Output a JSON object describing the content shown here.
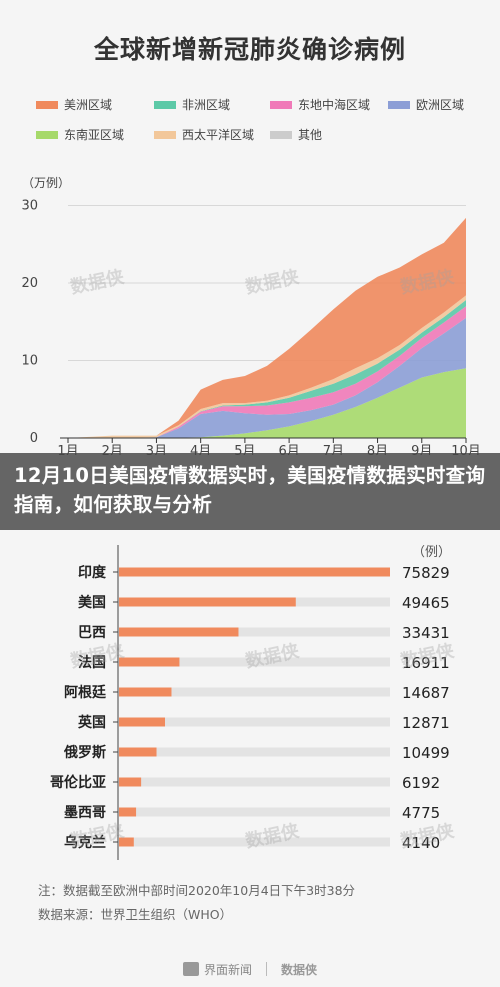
{
  "header": {
    "title": "全球新增新冠肺炎确诊病例"
  },
  "legend": [
    {
      "label": "美洲区域",
      "color": "#f08a5d"
    },
    {
      "label": "非洲区域",
      "color": "#5cc9a7"
    },
    {
      "label": "东地中海区域",
      "color": "#f07ab8"
    },
    {
      "label": "欧洲区域",
      "color": "#8c9ed6"
    },
    {
      "label": "东南亚区域",
      "color": "#a6d96a"
    },
    {
      "label": "西太平洋区域",
      "color": "#f2c79a"
    },
    {
      "label": "其他",
      "color": "#cccccc"
    }
  ],
  "overlay": {
    "text": "12月10日美国疫情数据实时，美国疫情数据实时查询指南，如何获取与分析"
  },
  "chart_data": [
    {
      "type": "area",
      "unit": "（万例）",
      "x_ticks": [
        "1月",
        "2月",
        "3月",
        "4月",
        "5月",
        "6月",
        "7月",
        "8月",
        "9月",
        "10月"
      ],
      "y_ticks": [
        0,
        10,
        20,
        30
      ],
      "ylim": [
        0,
        32
      ],
      "series": [
        {
          "name": "东南亚区域",
          "color": "#a6d96a",
          "x": [
            1,
            2,
            3,
            3.5,
            4,
            4.5,
            5,
            5.5,
            6,
            6.5,
            7,
            7.5,
            8,
            8.5,
            9,
            9.5,
            10
          ],
          "values": [
            0,
            0,
            0,
            0.05,
            0.1,
            0.3,
            0.6,
            1.0,
            1.5,
            2.2,
            3.0,
            4.0,
            5.2,
            6.5,
            7.8,
            8.5,
            9.0
          ]
        },
        {
          "name": "欧洲区域",
          "color": "#8c9ed6",
          "x": [
            1,
            2,
            3,
            3.5,
            4,
            4.5,
            5,
            5.5,
            6,
            6.5,
            7,
            7.5,
            8,
            8.5,
            9,
            9.5,
            10
          ],
          "values": [
            0,
            0,
            0.1,
            1.2,
            3.0,
            3.2,
            2.6,
            2.0,
            1.6,
            1.4,
            1.3,
            1.5,
            2.0,
            2.8,
            3.8,
            5.0,
            6.5
          ]
        },
        {
          "name": "东地中海区域",
          "color": "#f07ab8",
          "x": [
            1,
            2,
            3,
            3.5,
            4,
            4.5,
            5,
            5.5,
            6,
            6.5,
            7,
            7.5,
            8,
            8.5,
            9,
            9.5,
            10
          ],
          "values": [
            0,
            0,
            0,
            0.2,
            0.3,
            0.6,
            0.9,
            1.2,
            1.5,
            1.6,
            1.6,
            1.5,
            1.4,
            1.3,
            1.3,
            1.4,
            1.5
          ]
        },
        {
          "name": "非洲区域",
          "color": "#5cc9a7",
          "x": [
            1,
            2,
            3,
            3.5,
            4,
            4.5,
            5,
            5.5,
            6,
            6.5,
            7,
            7.5,
            8,
            8.5,
            9,
            9.5,
            10
          ],
          "values": [
            0,
            0,
            0,
            0,
            0.05,
            0.1,
            0.2,
            0.4,
            0.6,
            0.9,
            1.1,
            1.2,
            1.0,
            0.8,
            0.7,
            0.7,
            0.8
          ]
        },
        {
          "name": "西太平洋区域",
          "color": "#f2c79a",
          "x": [
            1,
            2,
            3,
            3.5,
            4,
            4.5,
            5,
            5.5,
            6,
            6.5,
            7,
            7.5,
            8,
            8.5,
            9,
            9.5,
            10
          ],
          "values": [
            0,
            0.3,
            0.2,
            0.2,
            0.3,
            0.3,
            0.2,
            0.2,
            0.3,
            0.4,
            0.6,
            0.8,
            0.7,
            0.6,
            0.6,
            0.6,
            0.6
          ]
        },
        {
          "name": "美洲区域",
          "color": "#f08a5d",
          "x": [
            1,
            2,
            3,
            3.5,
            4,
            4.5,
            5,
            5.5,
            6,
            6.5,
            7,
            7.5,
            8,
            8.5,
            9,
            9.5,
            10
          ],
          "values": [
            0,
            0,
            0,
            0.6,
            2.5,
            3.0,
            3.5,
            4.5,
            6.0,
            7.5,
            9.0,
            10.0,
            10.5,
            10.0,
            9.5,
            9.0,
            10.0
          ]
        }
      ]
    },
    {
      "type": "bar",
      "unit": "（例）",
      "categories": [
        "印度",
        "美国",
        "巴西",
        "法国",
        "阿根廷",
        "英国",
        "俄罗斯",
        "哥伦比亚",
        "墨西哥",
        "乌克兰"
      ],
      "values": [
        75829,
        49465,
        33431,
        16911,
        14687,
        12871,
        10499,
        6192,
        4775,
        4140
      ],
      "value_labels": [
        "75829",
        "49465",
        "33431",
        "16911",
        "14687",
        "12871",
        "10499",
        "6192",
        "4775",
        "4140"
      ],
      "xlim": [
        0,
        75829
      ],
      "bar_color": "#f08a5d",
      "track_color": "#e3e3e3"
    }
  ],
  "notes": {
    "note1": "注：数据截至欧洲中部时间2020年10月4日下午3时38分",
    "note2": "数据来源：世界卫生组织（WHO）"
  },
  "footer": {
    "brand": "界面新闻"
  }
}
